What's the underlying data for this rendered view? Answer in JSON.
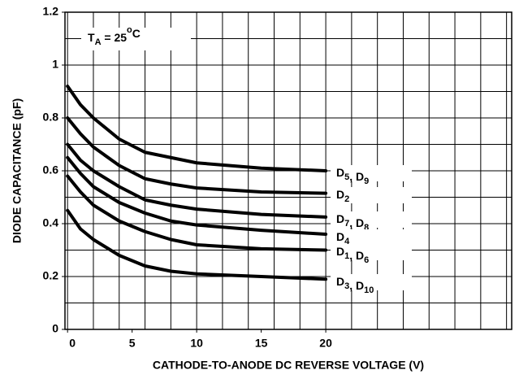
{
  "chart_data": {
    "type": "line",
    "ylabel": "DIODE CAPACITANCE (pF)",
    "xlabel": "CATHODE-TO-ANODE DC REVERSE VOLTAGE (V)",
    "annotation": "TA = 25oC",
    "x": [
      0,
      1,
      2,
      4,
      6,
      8,
      10,
      15,
      20
    ],
    "series": [
      {
        "name": "D5, D9",
        "color": "#000000",
        "values": [
          0.92,
          0.85,
          0.8,
          0.72,
          0.67,
          0.65,
          0.63,
          0.61,
          0.6
        ]
      },
      {
        "name": "D2",
        "color": "#000000",
        "values": [
          0.8,
          0.74,
          0.69,
          0.62,
          0.57,
          0.55,
          0.535,
          0.52,
          0.515
        ]
      },
      {
        "name": "D7, D8",
        "color": "#000000",
        "values": [
          0.7,
          0.64,
          0.6,
          0.54,
          0.49,
          0.47,
          0.455,
          0.435,
          0.425
        ]
      },
      {
        "name": "D4",
        "color": "#000000",
        "values": [
          0.65,
          0.59,
          0.54,
          0.48,
          0.44,
          0.41,
          0.395,
          0.375,
          0.36
        ]
      },
      {
        "name": "D1, D6",
        "color": "#000000",
        "values": [
          0.58,
          0.52,
          0.47,
          0.41,
          0.37,
          0.34,
          0.32,
          0.305,
          0.3
        ]
      },
      {
        "name": "D3, D10",
        "color": "#000000",
        "values": [
          0.45,
          0.38,
          0.34,
          0.28,
          0.24,
          0.22,
          0.21,
          0.2,
          0.19
        ]
      }
    ],
    "xlim": [
      -0.2,
      34.4
    ],
    "ylim": [
      0,
      1.2
    ],
    "xticks": [
      0,
      5,
      10,
      15,
      20
    ],
    "yticks": [
      0,
      0.2,
      0.4,
      0.6,
      0.8,
      1,
      1.2
    ],
    "xgrid": [
      0,
      2,
      4,
      6,
      8,
      10,
      12,
      14,
      16,
      18,
      20,
      22,
      24,
      26,
      28,
      30,
      32,
      34
    ],
    "ygrid": [
      0.1,
      0.2,
      0.3,
      0.4,
      0.5,
      0.6,
      0.7,
      0.8,
      0.9,
      1,
      1.1
    ],
    "grid": true
  }
}
